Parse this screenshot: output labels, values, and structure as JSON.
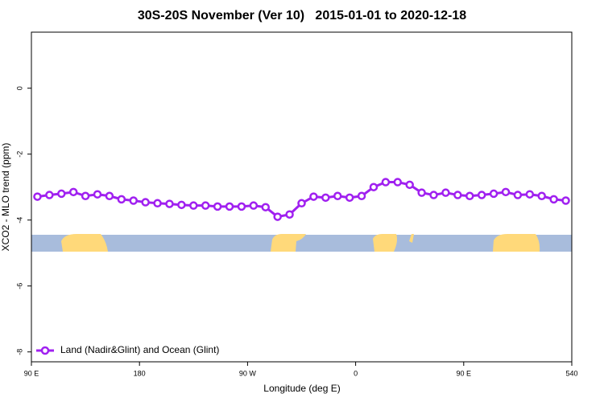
{
  "chart_data": {
    "type": "line",
    "title": "30S-20S November (Ver 10)   2015-01-01 to 2020-12-18",
    "x_label": "Longitude (deg E)",
    "y_label": "XCO2 - MLO trend (ppm)",
    "x": [
      95,
      105,
      115,
      125,
      135,
      145,
      155,
      165,
      175,
      185,
      195,
      205,
      215,
      225,
      235,
      245,
      255,
      265,
      275,
      285,
      295,
      305,
      315,
      325,
      335,
      345,
      355,
      365,
      375,
      385,
      395,
      405,
      415,
      425,
      435,
      445,
      455,
      465,
      475,
      485,
      495,
      505,
      515,
      525,
      535
    ],
    "series": [
      {
        "name": "Land (Nadir&Glint) and Ocean (Glint)",
        "color": "#a020f0",
        "values": [
          -3.29,
          -3.24,
          -3.2,
          -3.15,
          -3.27,
          -3.22,
          -3.27,
          -3.37,
          -3.41,
          -3.46,
          -3.49,
          -3.51,
          -3.54,
          -3.56,
          -3.56,
          -3.59,
          -3.59,
          -3.59,
          -3.56,
          -3.61,
          -3.9,
          -3.83,
          -3.49,
          -3.29,
          -3.32,
          -3.27,
          -3.32,
          -3.27,
          -3.0,
          -2.85,
          -2.85,
          -2.93,
          -3.17,
          -3.24,
          -3.17,
          -3.24,
          -3.27,
          -3.24,
          -3.2,
          -3.15,
          -3.24,
          -3.22,
          -3.27,
          -3.37,
          -3.41
        ]
      }
    ],
    "xlim": [
      90,
      540
    ],
    "xticks": [
      {
        "value": 90,
        "label": "90 E"
      },
      180,
      {
        "value": 270,
        "label": "90 W"
      },
      {
        "value": 360,
        "label": "0"
      },
      {
        "value": 450,
        "label": "90 E"
      },
      540
    ],
    "ylim": [
      -8.3,
      1.7
    ],
    "yticks": [
      0,
      -2,
      -4,
      -6,
      -8
    ],
    "legend": "bottom-left"
  }
}
